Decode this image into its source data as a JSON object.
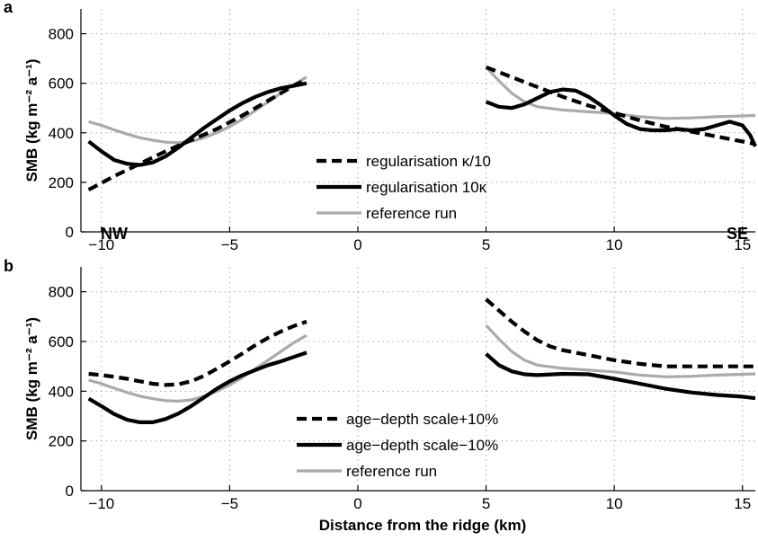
{
  "chart_data": [
    {
      "type": "line",
      "panel_label": "a",
      "ylabel": "SMB (kg m⁻² a⁻¹)",
      "xlim": [
        -10.8,
        15.5
      ],
      "ylim": [
        0,
        900
      ],
      "xticks": [
        -10,
        -5,
        0,
        5,
        10,
        15
      ],
      "yticks": [
        0,
        200,
        400,
        600,
        800
      ],
      "grid": true,
      "legend_position": "center",
      "annotations": [
        "NW",
        "SE"
      ],
      "series": [
        {
          "name": "regularisation κ/10",
          "style": "dashed",
          "color": "#000000",
          "width": "thick",
          "segments": [
            {
              "x": [
                -10.5,
                -9.5,
                -8.5,
                -7.5,
                -6.5,
                -5.5,
                -4.5,
                -3.5,
                -2.5,
                -2.0
              ],
              "y": [
                170,
                225,
                275,
                325,
                370,
                415,
                470,
                530,
                590,
                615
              ]
            },
            {
              "x": [
                5.0,
                6.0,
                7.0,
                8.0,
                9.0,
                10.0,
                11.0,
                12.0,
                13.0,
                14.0,
                15.0,
                15.5
              ],
              "y": [
                665,
                625,
                585,
                545,
                510,
                480,
                450,
                425,
                405,
                385,
                365,
                355
              ]
            }
          ]
        },
        {
          "name": "regularisation 10κ",
          "style": "solid",
          "color": "#000000",
          "width": "thick",
          "segments": [
            {
              "x": [
                -10.5,
                -10.0,
                -9.5,
                -9.0,
                -8.5,
                -8.0,
                -7.5,
                -7.0,
                -6.5,
                -6.0,
                -5.5,
                -5.0,
                -4.5,
                -4.0,
                -3.5,
                -3.0,
                -2.5,
                -2.0
              ],
              "y": [
                365,
                325,
                290,
                275,
                270,
                280,
                305,
                340,
                380,
                420,
                455,
                490,
                520,
                545,
                565,
                580,
                590,
                600
              ]
            },
            {
              "x": [
                5.0,
                5.5,
                6.0,
                6.5,
                7.0,
                7.5,
                8.0,
                8.5,
                9.0,
                9.5,
                10.0,
                10.5,
                11.0,
                11.5,
                12.0,
                12.5,
                13.0,
                13.5,
                14.0,
                14.5,
                15.0,
                15.3,
                15.5
              ],
              "y": [
                525,
                505,
                500,
                515,
                540,
                565,
                575,
                570,
                545,
                510,
                470,
                435,
                415,
                410,
                410,
                415,
                410,
                415,
                430,
                445,
                430,
                390,
                345
              ]
            }
          ]
        },
        {
          "name": "reference run",
          "style": "solid",
          "color": "#aaaaaa",
          "width": "medium",
          "segments": [
            {
              "x": [
                -10.5,
                -10.0,
                -9.5,
                -9.0,
                -8.5,
                -8.0,
                -7.5,
                -7.0,
                -6.5,
                -6.0,
                -5.5,
                -5.0,
                -4.5,
                -4.0,
                -3.5,
                -3.0,
                -2.5,
                -2.0
              ],
              "y": [
                445,
                430,
                412,
                395,
                380,
                370,
                362,
                360,
                365,
                380,
                400,
                425,
                455,
                490,
                525,
                560,
                595,
                625
              ]
            },
            {
              "x": [
                5.0,
                5.5,
                6.0,
                6.5,
                7.0,
                8.0,
                9.0,
                10.0,
                11.0,
                12.0,
                13.0,
                14.0,
                15.0,
                15.5
              ],
              "y": [
                665,
                610,
                560,
                525,
                505,
                492,
                485,
                478,
                465,
                458,
                460,
                465,
                468,
                470
              ]
            }
          ]
        }
      ]
    },
    {
      "type": "line",
      "panel_label": "b",
      "ylabel": "SMB (kg m⁻² a⁻¹)",
      "xlabel": "Distance from the ridge (km)",
      "xlim": [
        -10.8,
        15.5
      ],
      "ylim": [
        0,
        900
      ],
      "xticks": [
        -10,
        -5,
        0,
        5,
        10,
        15
      ],
      "yticks": [
        0,
        200,
        400,
        600,
        800
      ],
      "grid": true,
      "legend_position": "bottom-center",
      "series": [
        {
          "name": "age−depth scale+10%",
          "style": "dashed",
          "color": "#000000",
          "width": "thick",
          "segments": [
            {
              "x": [
                -10.5,
                -10.0,
                -9.5,
                -9.0,
                -8.5,
                -8.0,
                -7.5,
                -7.0,
                -6.5,
                -6.0,
                -5.5,
                -5.0,
                -4.5,
                -4.0,
                -3.5,
                -3.0,
                -2.5,
                -2.0
              ],
              "y": [
                470,
                465,
                458,
                450,
                440,
                430,
                425,
                428,
                440,
                462,
                490,
                520,
                552,
                585,
                615,
                640,
                662,
                680
              ]
            },
            {
              "x": [
                5.0,
                5.5,
                6.0,
                6.5,
                7.0,
                7.5,
                8.0,
                9.0,
                10.0,
                11.0,
                12.0,
                13.0,
                14.0,
                15.0,
                15.5
              ],
              "y": [
                770,
                725,
                680,
                640,
                605,
                580,
                565,
                545,
                525,
                510,
                500,
                500,
                500,
                500,
                500
              ]
            }
          ]
        },
        {
          "name": "age−depth scale−10%",
          "style": "solid",
          "color": "#000000",
          "width": "thick",
          "segments": [
            {
              "x": [
                -10.5,
                -10.0,
                -9.5,
                -9.0,
                -8.5,
                -8.0,
                -7.5,
                -7.0,
                -6.5,
                -6.0,
                -5.5,
                -5.0,
                -4.5,
                -4.0,
                -3.5,
                -3.0,
                -2.5,
                -2.0
              ],
              "y": [
                370,
                340,
                308,
                285,
                275,
                275,
                288,
                310,
                340,
                375,
                410,
                440,
                465,
                485,
                505,
                520,
                538,
                555
              ]
            },
            {
              "x": [
                5.0,
                5.5,
                6.0,
                6.5,
                7.0,
                8.0,
                9.0,
                10.0,
                11.0,
                12.0,
                13.0,
                14.0,
                15.0,
                15.5
              ],
              "y": [
                550,
                505,
                480,
                468,
                465,
                470,
                468,
                450,
                430,
                410,
                395,
                385,
                378,
                372
              ]
            }
          ]
        },
        {
          "name": "reference run",
          "style": "solid",
          "color": "#aaaaaa",
          "width": "medium",
          "segments": [
            {
              "x": [
                -10.5,
                -10.0,
                -9.5,
                -9.0,
                -8.5,
                -8.0,
                -7.5,
                -7.0,
                -6.5,
                -6.0,
                -5.5,
                -5.0,
                -4.5,
                -4.0,
                -3.5,
                -3.0,
                -2.5,
                -2.0
              ],
              "y": [
                445,
                430,
                412,
                395,
                380,
                370,
                362,
                360,
                365,
                380,
                400,
                425,
                455,
                490,
                525,
                560,
                595,
                625
              ]
            },
            {
              "x": [
                5.0,
                5.5,
                6.0,
                6.5,
                7.0,
                8.0,
                9.0,
                10.0,
                11.0,
                12.0,
                13.0,
                14.0,
                15.0,
                15.5
              ],
              "y": [
                665,
                610,
                560,
                525,
                505,
                492,
                485,
                478,
                465,
                458,
                460,
                465,
                468,
                470
              ]
            }
          ]
        }
      ]
    }
  ],
  "colors": {
    "axis": "#000000",
    "grid": "#a8a8a8",
    "reference": "#aaaaaa"
  }
}
